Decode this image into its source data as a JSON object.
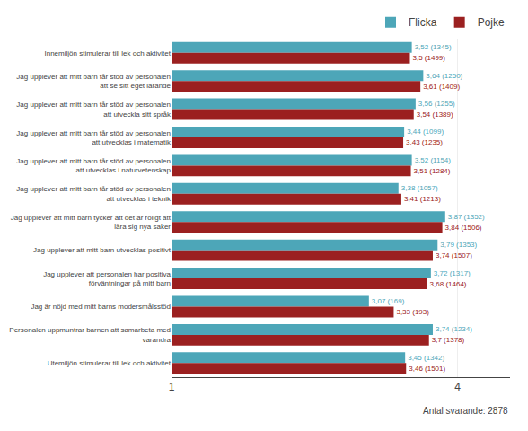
{
  "chart_data": {
    "type": "bar",
    "orientation": "horizontal",
    "categories": [
      "Innemiljön stimulerar till lek och aktivitet",
      "Jag upplever att mitt barn får stöd av personalen\natt se sitt eget lärande",
      "Jag upplever att mitt barn får stöd av personalen\natt utveckla sitt språk",
      "Jag upplever att mitt barn får stöd av personalen\natt utvecklas i matematik",
      "Jag upplever att mitt barn får stöd av personalen\natt utvecklas i naturvetenskap",
      "Jag upplever att mitt barn får stöd av personalen\natt utvecklas i teknik",
      "Jag upplever att mitt barn tycker att det är roligt att\nlära sig nya saker",
      "Jag upplever att mitt barn utvecklas positivt",
      "Jag upplever att personalen har positiva\nförväntningar på mitt barn",
      "Jag är nöjd med mitt barns modersmålsstöd",
      "Personalen uppmuntrar barnen att samarbeta med\nvarandra",
      "Utemiljön stimulerar till lek och aktivitet"
    ],
    "series": [
      {
        "name": "Flicka",
        "color": "#4da6b8",
        "values": [
          3.52,
          3.64,
          3.56,
          3.44,
          3.52,
          3.38,
          3.87,
          3.79,
          3.72,
          3.07,
          3.74,
          3.45
        ],
        "value_labels": [
          "3,52 (1345)",
          "3,64 (1250)",
          "3,56 (1255)",
          "3,44 (1099)",
          "3,52 (1154)",
          "3,38 (1057)",
          "3,87 (1352)",
          "3,79 (1353)",
          "3,72 (1317)",
          "3,07 (169)",
          "3,74 (1234)",
          "3,45 (1342)"
        ]
      },
      {
        "name": "Pojke",
        "color": "#9b2020",
        "values": [
          3.5,
          3.61,
          3.54,
          3.43,
          3.51,
          3.41,
          3.84,
          3.74,
          3.68,
          3.33,
          3.7,
          3.46
        ],
        "value_labels": [
          "3,5 (1499)",
          "3,61 (1409)",
          "3,54 (1389)",
          "3,43 (1235)",
          "3,51 (1284)",
          "3,41 (1213)",
          "3,84 (1506)",
          "3,74 (1507)",
          "3,68 (1464)",
          "3,33 (193)",
          "3,7 (1378)",
          "3,46 (1501)"
        ]
      }
    ],
    "xlim": [
      1,
      4.55
    ],
    "xticks": [
      1,
      4
    ],
    "grid": true,
    "legend": "upper right",
    "data_labels": true,
    "annotations": [
      "Antal svarande: 2878"
    ]
  }
}
